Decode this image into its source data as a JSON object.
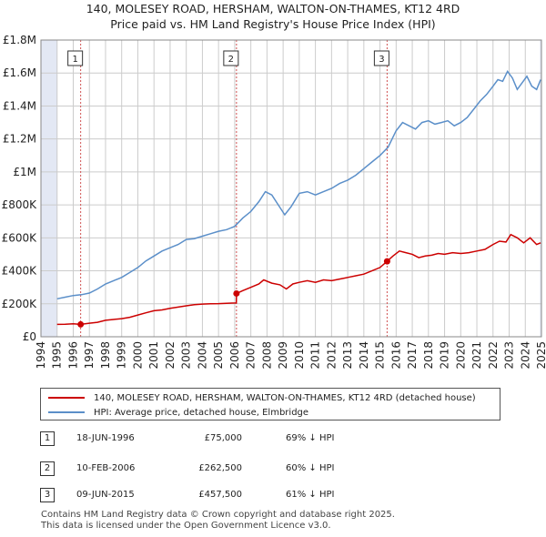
{
  "title_line1": "140, MOLESEY ROAD, HERSHAM, WALTON-ON-THAMES, KT12 4RD",
  "title_line2": "Price paid vs. HM Land Registry's House Price Index (HPI)",
  "colors": {
    "property": "#cc0000",
    "hpi": "#5b8fc9",
    "shade": "#e3e8f4",
    "grid": "#cccccc",
    "vline": "#d05050"
  },
  "chart_data": {
    "type": "line",
    "xlim": [
      1994,
      2025
    ],
    "ylim": [
      0,
      1800000
    ],
    "y_ticks": [
      0,
      200000,
      400000,
      600000,
      800000,
      1000000,
      1200000,
      1400000,
      1600000,
      1800000
    ],
    "y_tick_labels": [
      "£0",
      "£200K",
      "£400K",
      "£600K",
      "£800K",
      "£1M",
      "£1.2M",
      "£1.4M",
      "£1.6M",
      "£1.8M"
    ],
    "x_ticks": [
      1994,
      1995,
      1996,
      1997,
      1998,
      1999,
      2000,
      2001,
      2002,
      2003,
      2004,
      2005,
      2006,
      2007,
      2008,
      2009,
      2010,
      2011,
      2012,
      2013,
      2014,
      2015,
      2016,
      2017,
      2018,
      2019,
      2020,
      2021,
      2022,
      2023,
      2024,
      2025
    ],
    "x_tick_labels": [
      "1994",
      "1995",
      "1996",
      "1997",
      "1998",
      "1999",
      "2000",
      "2001",
      "2002",
      "2003",
      "2004",
      "2005",
      "2006",
      "2007",
      "2008",
      "2009",
      "2010",
      "2011",
      "2012",
      "2013",
      "2014",
      "2015",
      "2016",
      "2017",
      "2018",
      "2019",
      "2020",
      "2021",
      "2022",
      "2023",
      "2024",
      "2025"
    ],
    "shaded_before": 1995.0,
    "shaded_after": 2024.9,
    "series": [
      {
        "name": "140, MOLESEY ROAD, HERSHAM, WALTON-ON-THAMES, KT12 4RD (detached house)",
        "x": [
          1995.0,
          1995.5,
          1996.0,
          1996.46,
          1997.0,
          1997.5,
          1998.0,
          1998.5,
          1999.0,
          1999.5,
          2000.0,
          2000.5,
          2001.0,
          2001.5,
          2002.0,
          2002.5,
          2003.0,
          2003.5,
          2004.0,
          2004.5,
          2005.0,
          2005.5,
          2006.1,
          2006.11,
          2006.5,
          2007.0,
          2007.5,
          2007.8,
          2008.3,
          2008.8,
          2009.2,
          2009.6,
          2010.0,
          2010.5,
          2011.0,
          2011.5,
          2012.0,
          2012.5,
          2013.0,
          2013.5,
          2014.0,
          2014.5,
          2015.0,
          2015.44,
          2015.8,
          2016.2,
          2016.6,
          2017.0,
          2017.4,
          2017.8,
          2018.2,
          2018.6,
          2019.0,
          2019.5,
          2020.0,
          2020.5,
          2021.0,
          2021.5,
          2022.0,
          2022.4,
          2022.8,
          2023.1,
          2023.5,
          2023.9,
          2024.3,
          2024.7,
          2024.95
        ],
        "y": [
          75000,
          76000,
          79000,
          75000,
          82000,
          88000,
          100000,
          105000,
          110000,
          118000,
          132000,
          145000,
          158000,
          163000,
          172000,
          180000,
          188000,
          195000,
          198000,
          200000,
          201000,
          203000,
          205000,
          262500,
          280000,
          300000,
          320000,
          345000,
          325000,
          315000,
          290000,
          320000,
          330000,
          340000,
          330000,
          345000,
          340000,
          350000,
          360000,
          370000,
          380000,
          400000,
          420000,
          457500,
          490000,
          520000,
          510000,
          500000,
          480000,
          490000,
          495000,
          505000,
          500000,
          510000,
          505000,
          510000,
          520000,
          530000,
          560000,
          580000,
          575000,
          620000,
          600000,
          570000,
          600000,
          560000,
          570000
        ]
      },
      {
        "name": "HPI: Average price, detached house, Elmbridge",
        "x": [
          1995.0,
          1995.5,
          1996.0,
          1996.5,
          1997.0,
          1997.5,
          1998.0,
          1998.5,
          1999.0,
          1999.5,
          2000.0,
          2000.5,
          2001.0,
          2001.5,
          2002.0,
          2002.5,
          2003.0,
          2003.5,
          2004.0,
          2004.5,
          2005.0,
          2005.5,
          2006.0,
          2006.5,
          2007.0,
          2007.5,
          2007.9,
          2008.3,
          2008.7,
          2009.1,
          2009.5,
          2010.0,
          2010.5,
          2011.0,
          2011.5,
          2012.0,
          2012.5,
          2013.0,
          2013.5,
          2014.0,
          2014.5,
          2015.0,
          2015.5,
          2016.0,
          2016.4,
          2016.8,
          2017.2,
          2017.6,
          2018.0,
          2018.4,
          2018.8,
          2019.2,
          2019.6,
          2020.0,
          2020.4,
          2020.8,
          2021.2,
          2021.6,
          2022.0,
          2022.3,
          2022.6,
          2022.9,
          2023.2,
          2023.5,
          2023.8,
          2024.1,
          2024.4,
          2024.7,
          2024.95
        ],
        "y": [
          230000,
          240000,
          250000,
          255000,
          265000,
          290000,
          320000,
          340000,
          360000,
          390000,
          420000,
          460000,
          490000,
          520000,
          540000,
          560000,
          590000,
          595000,
          610000,
          625000,
          640000,
          650000,
          670000,
          720000,
          760000,
          820000,
          880000,
          860000,
          800000,
          740000,
          790000,
          870000,
          880000,
          860000,
          880000,
          900000,
          930000,
          950000,
          980000,
          1020000,
          1060000,
          1100000,
          1150000,
          1250000,
          1300000,
          1280000,
          1260000,
          1300000,
          1310000,
          1290000,
          1300000,
          1310000,
          1280000,
          1300000,
          1330000,
          1380000,
          1430000,
          1470000,
          1520000,
          1560000,
          1550000,
          1610000,
          1570000,
          1500000,
          1540000,
          1580000,
          1520000,
          1500000,
          1560000
        ]
      }
    ],
    "transactions": [
      {
        "id": "1",
        "date": "18-JUN-1996",
        "x": 1996.46,
        "price": 75000,
        "price_label": "£75,000",
        "hpi_label": "69% ↓ HPI"
      },
      {
        "id": "2",
        "date": "10-FEB-2006",
        "x": 2006.11,
        "price": 262500,
        "price_label": "£262,500",
        "hpi_label": "60% ↓ HPI"
      },
      {
        "id": "3",
        "date": "09-JUN-2015",
        "x": 2015.44,
        "price": 457500,
        "price_label": "£457,500",
        "hpi_label": "61% ↓ HPI"
      }
    ]
  },
  "legend": {
    "property_label": "140, MOLESEY ROAD, HERSHAM, WALTON-ON-THAMES, KT12 4RD (detached house)",
    "hpi_label": "HPI: Average price, detached house, Elmbridge"
  },
  "footer_line1": "Contains HM Land Registry data © Crown copyright and database right 2025.",
  "footer_line2": "This data is licensed under the Open Government Licence v3.0."
}
